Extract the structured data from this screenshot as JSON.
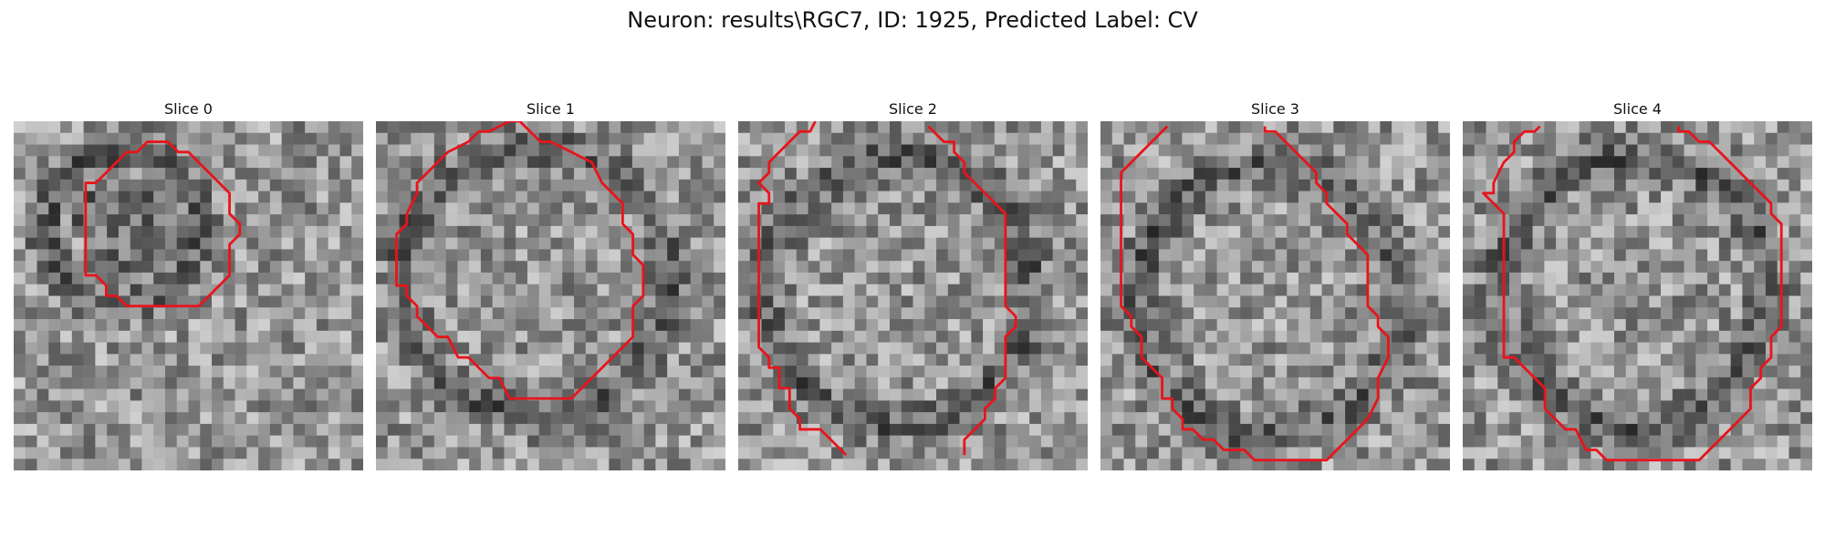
{
  "figure": {
    "title": "Neuron: results\\RGC7, ID: 1925, Predicted Label: CV"
  },
  "slices": [
    {
      "label": "Slice 0"
    },
    {
      "label": "Slice 1"
    },
    {
      "label": "Slice 2"
    },
    {
      "label": "Slice 3"
    },
    {
      "label": "Slice 4"
    }
  ],
  "colors": {
    "contour": "#e8141b",
    "background": "#ffffff"
  },
  "colormap": "grayscale"
}
